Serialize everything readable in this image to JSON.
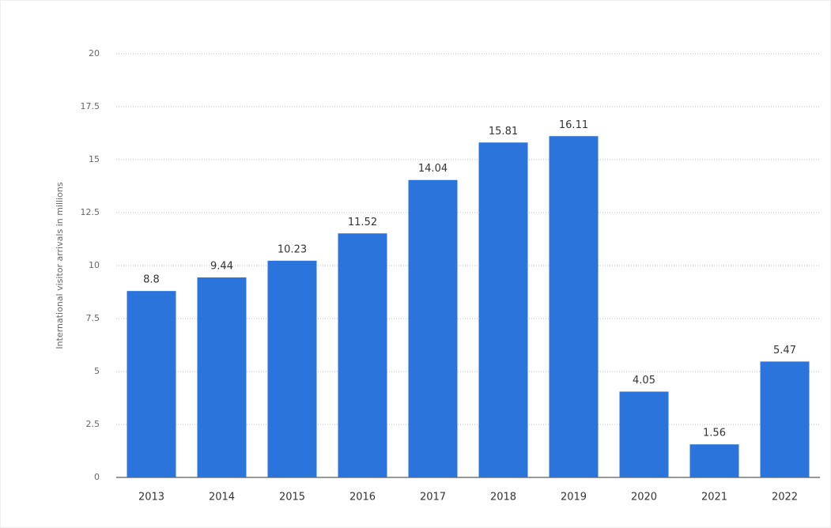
{
  "chart_data": {
    "type": "bar",
    "y_label": "International visitor arrivals in millions",
    "categories": [
      "2013",
      "2014",
      "2015",
      "2016",
      "2017",
      "2018",
      "2019",
      "2020",
      "2021",
      "2022"
    ],
    "values": [
      8.8,
      9.44,
      10.23,
      11.52,
      14.04,
      15.81,
      16.11,
      4.05,
      1.56,
      5.47
    ],
    "color": "#2a74dc",
    "ylim": [
      0,
      20
    ],
    "yticks": [
      0,
      2.5,
      5,
      7.5,
      10,
      12.5,
      15,
      17.5,
      20
    ],
    "grid": true
  }
}
